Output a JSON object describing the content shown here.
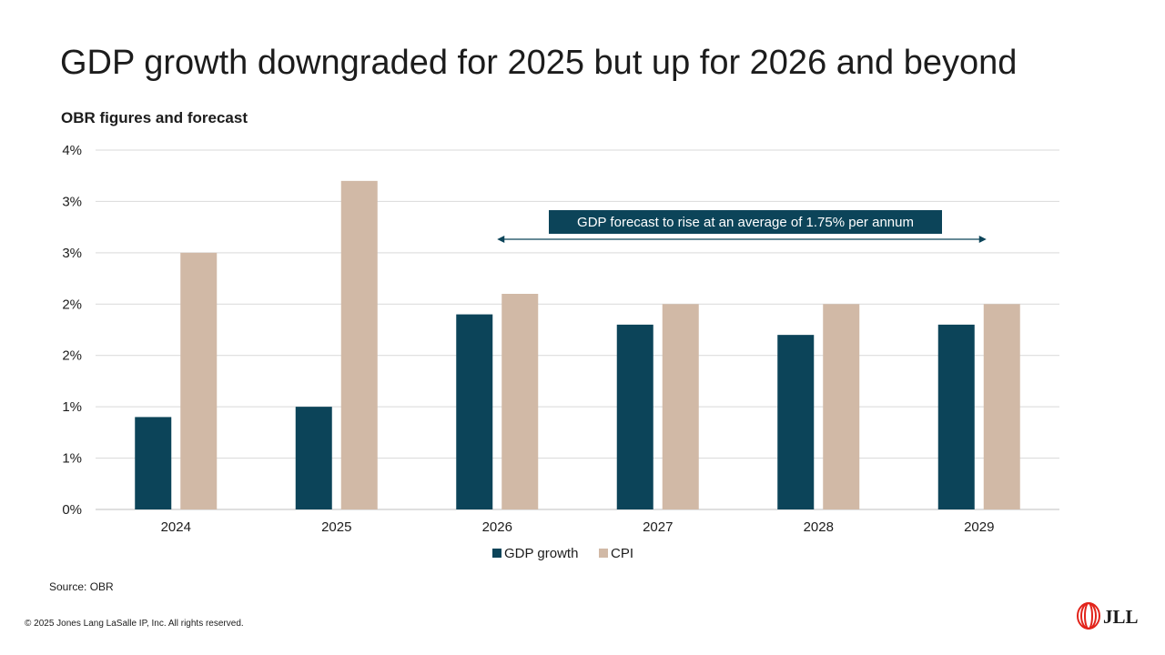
{
  "slide": {
    "title": "GDP growth downgraded for 2025 but up for 2026 and beyond",
    "subtitle": "OBR figures and forecast",
    "source": "Source: OBR",
    "copyright": "© 2025 Jones Lang LaSalle IP, Inc. All rights reserved.",
    "logo_text": "JLL"
  },
  "chart_data": {
    "type": "bar",
    "title": "",
    "xlabel": "",
    "ylabel": "",
    "categories": [
      "2024",
      "2025",
      "2026",
      "2027",
      "2028",
      "2029"
    ],
    "series": [
      {
        "name": "GDP growth",
        "color": "#0c4459",
        "values": [
          0.9,
          1.0,
          1.9,
          1.8,
          1.7,
          1.8
        ]
      },
      {
        "name": "CPI",
        "color": "#d1b9a6",
        "values": [
          2.5,
          3.2,
          2.1,
          2.0,
          2.0,
          2.0
        ]
      }
    ],
    "ylim": [
      0,
      3.5
    ],
    "ytick_labels": [
      "0%",
      "1%",
      "1%",
      "2%",
      "2%",
      "3%",
      "3%",
      "4%"
    ],
    "grid": true,
    "legend": "bottom",
    "annotation": {
      "text": "GDP forecast to rise at an average of 1.75% per annum",
      "from_category": "2026",
      "to_category": "2029",
      "bg_color": "#0c4459"
    }
  }
}
